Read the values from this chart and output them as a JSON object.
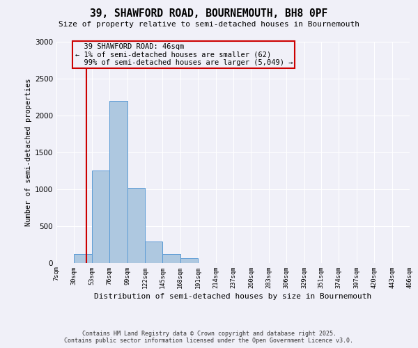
{
  "title": "39, SHAWFORD ROAD, BOURNEMOUTH, BH8 0PF",
  "subtitle": "Size of property relative to semi-detached houses in Bournemouth",
  "xlabel": "Distribution of semi-detached houses by size in Bournemouth",
  "ylabel": "Number of semi-detached properties",
  "bins": [
    7,
    30,
    53,
    76,
    99,
    122,
    145,
    168,
    191,
    214,
    237,
    260,
    283,
    306,
    329,
    351,
    374,
    397,
    420,
    443,
    466
  ],
  "counts": [
    0,
    120,
    1250,
    2200,
    1020,
    290,
    115,
    60,
    0,
    0,
    0,
    0,
    0,
    0,
    0,
    0,
    0,
    0,
    0,
    0
  ],
  "property_size": 46,
  "property_label": "39 SHAWFORD ROAD: 46sqm",
  "smaller_pct": "1%",
  "smaller_n": "62",
  "larger_pct": "99%",
  "larger_n": "5,049",
  "bar_color": "#aec8e0",
  "bar_edge_color": "#5b9bd5",
  "vline_color": "#cc0000",
  "annotation_box_edge": "#cc0000",
  "background_color": "#f0f0f8",
  "grid_color": "#d0d0e8",
  "ylim": [
    0,
    3000
  ],
  "yticks": [
    0,
    500,
    1000,
    1500,
    2000,
    2500,
    3000
  ],
  "footer_line1": "Contains HM Land Registry data © Crown copyright and database right 2025.",
  "footer_line2": "Contains public sector information licensed under the Open Government Licence v3.0."
}
